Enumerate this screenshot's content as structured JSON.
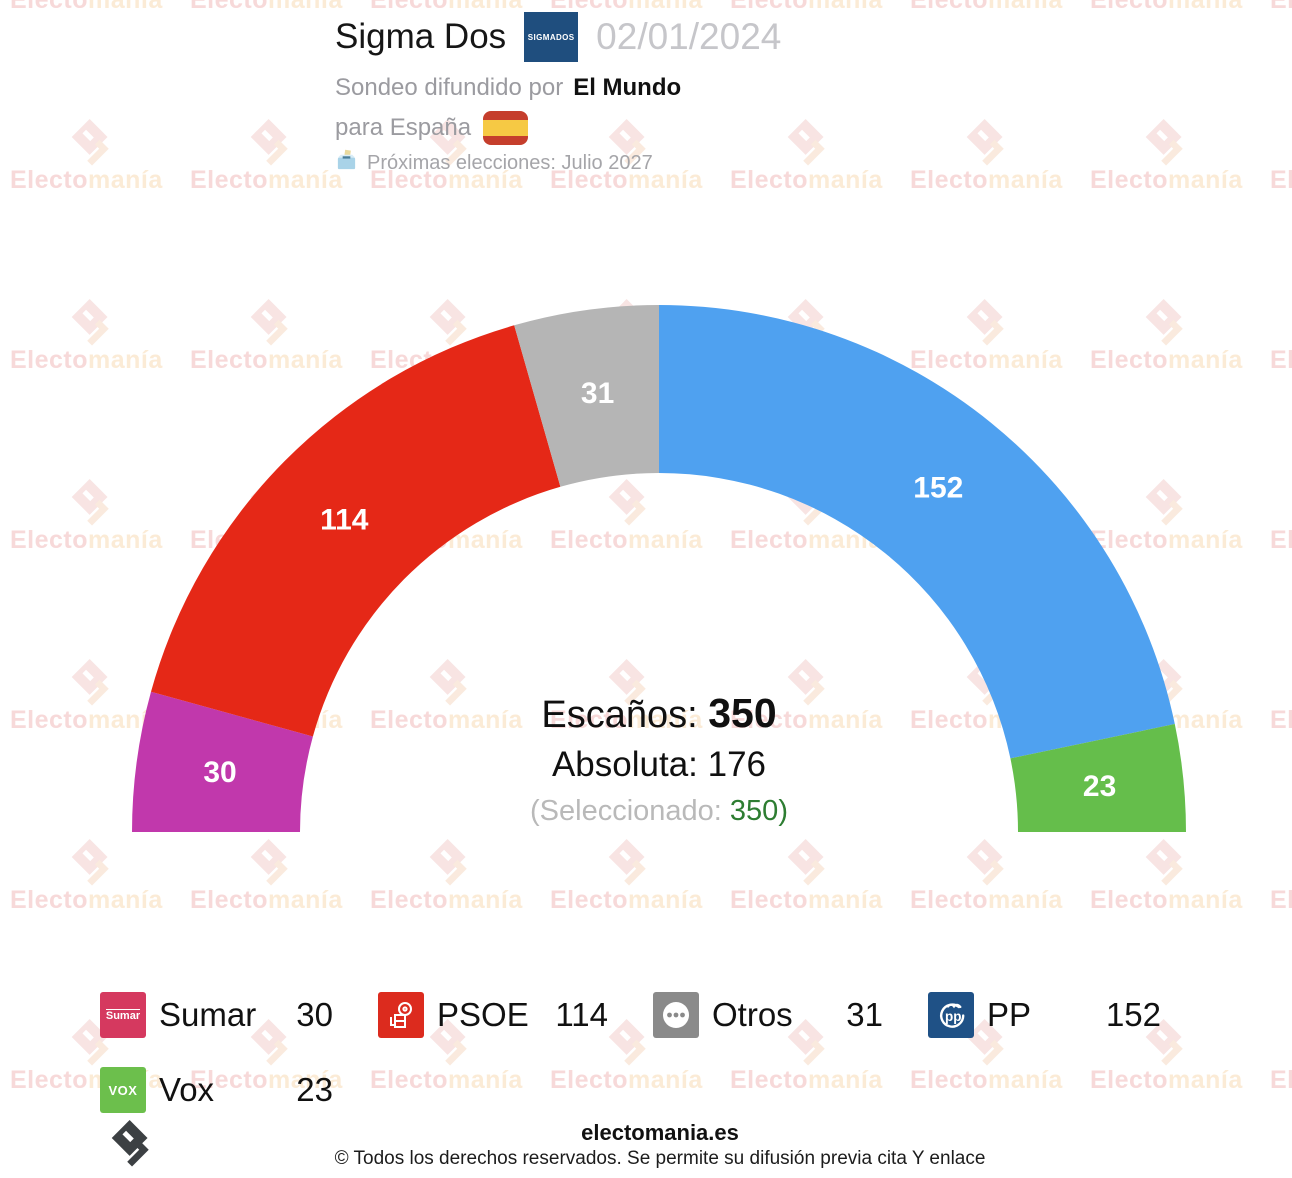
{
  "header": {
    "pollster": "Sigma Dos",
    "pollster_logo_text": "SIGMADOS",
    "date": "02/01/2024",
    "diffused_prefix": "Sondeo difundido por",
    "media": "El Mundo",
    "scope_prefix": "para España",
    "next_election": "Próximas elecciones: Julio 2027"
  },
  "chart_data": {
    "type": "pie",
    "variant": "half-donut-seat-arc",
    "total_seats": 350,
    "majority": 176,
    "selected_seats": 350,
    "order_note": "segments drawn left to right across the semicircle",
    "series": [
      {
        "name": "Sumar",
        "seats": 30,
        "color": "#C138AC"
      },
      {
        "name": "PSOE",
        "seats": 114,
        "color": "#E52817"
      },
      {
        "name": "Otros",
        "seats": 31,
        "color": "#B5B5B5"
      },
      {
        "name": "PP",
        "seats": 152,
        "color": "#4FA1F0"
      },
      {
        "name": "Vox",
        "seats": 23,
        "color": "#65BE4B"
      }
    ]
  },
  "center": {
    "seats_label": "Escaños:",
    "seats_value": "350",
    "majority_label": "Absoluta:",
    "majority_value": "176",
    "selected_prefix": "(Seleccionado:",
    "selected_value": "350",
    "selected_suffix": ")",
    "selected_color": "#2e7d32"
  },
  "legend": {
    "items": [
      {
        "party": "Sumar",
        "value": "30",
        "icon": "sumar-logo",
        "icon_color": "#D5395F",
        "icon_text": "Sumar"
      },
      {
        "party": "PSOE",
        "value": "114",
        "icon": "psoe-logo",
        "icon_color": "#DC2B1E",
        "icon_text": ""
      },
      {
        "party": "Otros",
        "value": "31",
        "icon": "otros-dots",
        "icon_color": "#8A8A8A",
        "icon_text": ""
      },
      {
        "party": "PP",
        "value": "152",
        "icon": "pp-logo",
        "icon_color": "#1F5186",
        "icon_text": ""
      },
      {
        "party": "Vox",
        "value": "23",
        "icon": "vox-logo",
        "icon_color": "#6CBF4C",
        "icon_text": "VOX"
      }
    ]
  },
  "watermark": {
    "part1": "Electo",
    "part2": "manía"
  },
  "footer": {
    "site": "electomania.es",
    "copyright": "© Todos los derechos reservados. Se permite su difusión previa cita Y enlace"
  }
}
